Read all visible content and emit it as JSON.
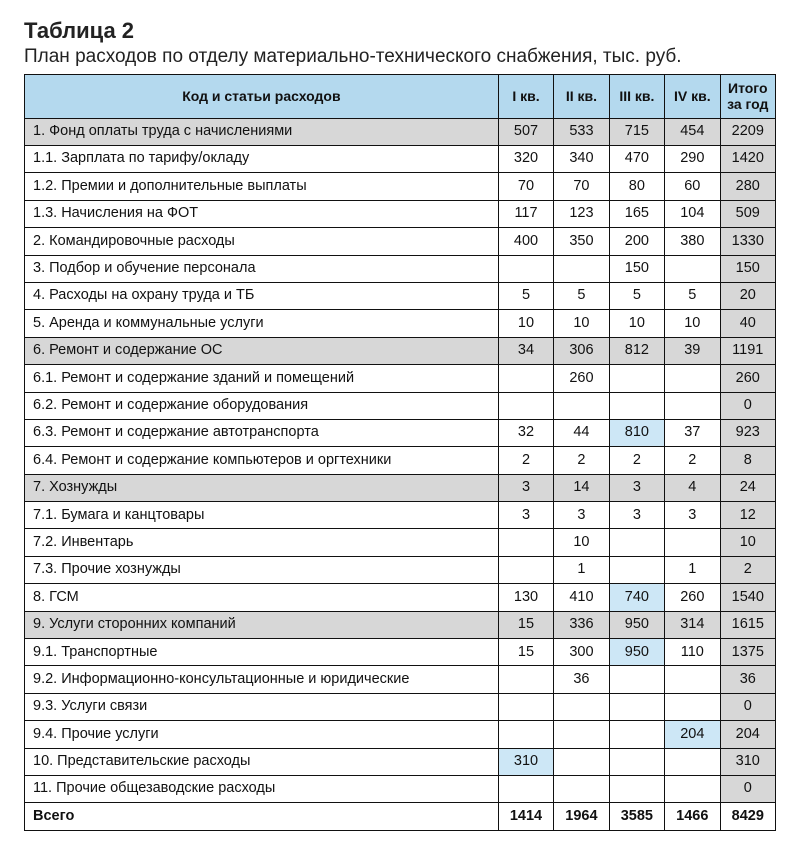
{
  "title": "Таблица 2",
  "subtitle": "План расходов по отделу материально-технического снабжения, тыс. руб.",
  "columns": {
    "label": "Код и статьи расходов",
    "q1": "I кв.",
    "q2": "II кв.",
    "q3": "III кв.",
    "q4": "IV кв.",
    "total": "Итого за год"
  },
  "rows": [
    {
      "label": "1. Фонд оплаты труда с начислениями",
      "q1": "507",
      "q2": "533",
      "q3": "715",
      "q4": "454",
      "total": "2209",
      "shaded": true
    },
    {
      "label": "1.1. Зарплата по тарифу/окладу",
      "q1": "320",
      "q2": "340",
      "q3": "470",
      "q4": "290",
      "total": "1420"
    },
    {
      "label": "1.2. Премии и дополнительные выплаты",
      "q1": "70",
      "q2": "70",
      "q3": "80",
      "q4": "60",
      "total": "280"
    },
    {
      "label": "1.3. Начисления на ФОТ",
      "q1": "117",
      "q2": "123",
      "q3": "165",
      "q4": "104",
      "total": "509"
    },
    {
      "label": "2. Командировочные расходы",
      "q1": "400",
      "q2": "350",
      "q3": "200",
      "q4": "380",
      "total": "1330"
    },
    {
      "label": "3. Подбор и обучение персонала",
      "q1": "",
      "q2": "",
      "q3": "150",
      "q4": "",
      "total": "150"
    },
    {
      "label": "4. Расходы на охрану труда и ТБ",
      "q1": "5",
      "q2": "5",
      "q3": "5",
      "q4": "5",
      "total": "20"
    },
    {
      "label": "5. Аренда и коммунальные услуги",
      "q1": "10",
      "q2": "10",
      "q3": "10",
      "q4": "10",
      "total": "40"
    },
    {
      "label": "6. Ремонт и содержание ОС",
      "q1": "34",
      "q2": "306",
      "q3": "812",
      "q4": "39",
      "total": "1191",
      "shaded": true
    },
    {
      "label": "6.1. Ремонт и содержание зданий и помещений",
      "q1": "",
      "q2": "260",
      "q3": "",
      "q4": "",
      "total": "260"
    },
    {
      "label": "6.2. Ремонт и содержание оборудования",
      "q1": "",
      "q2": "",
      "q3": "",
      "q4": "",
      "total": "0"
    },
    {
      "label": "6.3. Ремонт и содержание автотранспорта",
      "q1": "32",
      "q2": "44",
      "q3": "810",
      "q3_hl": true,
      "q4": "37",
      "total": "923"
    },
    {
      "label": "6.4. Ремонт и содержание компьютеров и оргтехники",
      "q1": "2",
      "q2": "2",
      "q3": "2",
      "q4": "2",
      "total": "8"
    },
    {
      "label": "7. Хознужды",
      "q1": "3",
      "q2": "14",
      "q3": "3",
      "q4": "4",
      "total": "24",
      "shaded": true
    },
    {
      "label": "7.1. Бумага и канцтовары",
      "q1": "3",
      "q2": "3",
      "q3": "3",
      "q4": "3",
      "total": "12"
    },
    {
      "label": "7.2. Инвентарь",
      "q1": "",
      "q2": "10",
      "q3": "",
      "q4": "",
      "total": "10"
    },
    {
      "label": "7.3. Прочие хознужды",
      "q1": "",
      "q2": "1",
      "q3": "",
      "q4": "1",
      "total": "2"
    },
    {
      "label": "8. ГСМ",
      "q1": "130",
      "q2": "410",
      "q3": "740",
      "q3_hl": true,
      "q4": "260",
      "total": "1540"
    },
    {
      "label": "9. Услуги сторонних компаний",
      "q1": "15",
      "q2": "336",
      "q3": "950",
      "q4": "314",
      "total": "1615",
      "shaded": true
    },
    {
      "label": "9.1. Транспортные",
      "q1": "15",
      "q2": "300",
      "q3": "950",
      "q3_hl": true,
      "q4": "110",
      "total": "1375"
    },
    {
      "label": "9.2. Информационно-консультационные и юридические",
      "q1": "",
      "q2": "36",
      "q3": "",
      "q4": "",
      "total": "36"
    },
    {
      "label": "9.3. Услуги связи",
      "q1": "",
      "q2": "",
      "q3": "",
      "q4": "",
      "total": "0"
    },
    {
      "label": "9.4. Прочие услуги",
      "q1": "",
      "q2": "",
      "q3": "",
      "q4": "204",
      "q4_hl": true,
      "total": "204"
    },
    {
      "label": "10. Представительские расходы",
      "q1": "310",
      "q1_hl": true,
      "q2": "",
      "q3": "",
      "q4": "",
      "total": "310"
    },
    {
      "label": "11. Прочие общезаводские расходы",
      "q1": "",
      "q2": "",
      "q3": "",
      "q4": "",
      "total": "0"
    }
  ],
  "footer": {
    "label": "Всего",
    "q1": "1414",
    "q2": "1964",
    "q3": "3585",
    "q4": "1466",
    "total": "8429"
  },
  "colors": {
    "header_bg": "#b4d9ee",
    "shaded_bg": "#d7d7d7",
    "highlight_bg": "#cde7f6",
    "border": "#111111",
    "text": "#111111",
    "background": "#ffffff"
  },
  "fontsizes": {
    "title": 22,
    "subtitle": 19,
    "header": 14,
    "cell": 14.5
  }
}
